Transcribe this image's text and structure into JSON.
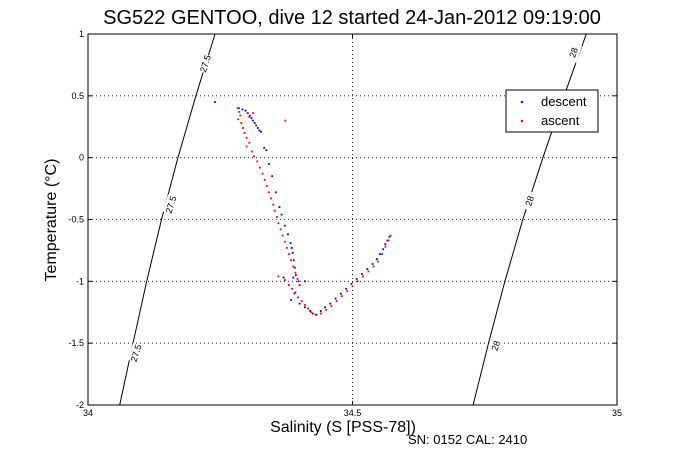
{
  "chart_data": {
    "type": "scatter",
    "title": "SG522 GENTOO, dive 12 started 24-Jan-2012 09:19:00",
    "xlabel": "Salinity (S [PSS-78])",
    "ylabel": "Temperature (°C)",
    "footer": "SN: 0152  CAL: 2410",
    "xlim": [
      34,
      35
    ],
    "ylim": [
      -2,
      1
    ],
    "x_ticks": [
      34,
      34.5,
      35
    ],
    "x_tick_labels": [
      "34",
      "34.5",
      "35"
    ],
    "y_ticks": [
      -2,
      -1.5,
      -1,
      -0.5,
      0,
      0.5,
      1
    ],
    "y_tick_labels": [
      "-2",
      "-1.5",
      "-1",
      "-0.5",
      "0",
      "0.5",
      "1"
    ],
    "grid": true,
    "legend_placement": "top-right",
    "density_contours": [
      {
        "label": "27.5",
        "points": [
          [
            34.24,
            1.0
          ],
          [
            34.204,
            0.5
          ],
          [
            34.17,
            0.0
          ],
          [
            34.139,
            -0.5
          ],
          [
            34.111,
            -1.0
          ],
          [
            34.085,
            -1.5
          ],
          [
            34.06,
            -2.0
          ]
        ],
        "label_positions": [
          [
            34.222,
            0.76
          ],
          [
            34.157,
            -0.38
          ],
          [
            34.091,
            -1.58
          ]
        ]
      },
      {
        "label": "28",
        "points": [
          [
            34.942,
            1.0
          ],
          [
            34.9,
            0.5
          ],
          [
            34.86,
            0.0
          ],
          [
            34.822,
            -0.5
          ],
          [
            34.788,
            -1.0
          ],
          [
            34.757,
            -1.5
          ],
          [
            34.728,
            -2.0
          ]
        ],
        "label_positions": [
          [
            34.918,
            0.85
          ],
          [
            34.835,
            -0.35
          ],
          [
            34.771,
            -1.52
          ]
        ]
      }
    ],
    "series": [
      {
        "name": "descent",
        "color": "#0000ff",
        "points": [
          [
            34.24,
            0.45
          ],
          [
            34.285,
            0.4
          ],
          [
            34.292,
            0.39
          ],
          [
            34.298,
            0.38
          ],
          [
            34.302,
            0.36
          ],
          [
            34.306,
            0.34
          ],
          [
            34.309,
            0.32
          ],
          [
            34.312,
            0.3
          ],
          [
            34.315,
            0.28
          ],
          [
            34.318,
            0.26
          ],
          [
            34.321,
            0.24
          ],
          [
            34.324,
            0.22
          ],
          [
            34.327,
            0.21
          ],
          [
            34.333,
            0.08
          ],
          [
            34.337,
            0.06
          ],
          [
            34.342,
            -0.05
          ],
          [
            34.348,
            -0.15
          ],
          [
            34.355,
            -0.28
          ],
          [
            34.362,
            -0.4
          ],
          [
            34.366,
            -0.46
          ],
          [
            34.372,
            -0.55
          ],
          [
            34.378,
            -0.62
          ],
          [
            34.383,
            -0.69
          ],
          [
            34.385,
            -0.73
          ],
          [
            34.387,
            -0.77
          ],
          [
            34.389,
            -0.83
          ],
          [
            34.391,
            -0.89
          ],
          [
            34.393,
            -0.95
          ],
          [
            34.37,
            -0.97
          ],
          [
            34.388,
            -0.97
          ],
          [
            34.398,
            -1.0
          ],
          [
            34.41,
            -1.0
          ],
          [
            34.4,
            -1.03
          ],
          [
            34.392,
            -1.09
          ],
          [
            34.384,
            -1.15
          ],
          [
            34.4,
            -1.18
          ],
          [
            34.41,
            -1.21
          ],
          [
            34.42,
            -1.24
          ],
          [
            34.425,
            -1.26
          ],
          [
            34.432,
            -1.27
          ],
          [
            34.44,
            -1.24
          ],
          [
            34.448,
            -1.21
          ],
          [
            34.458,
            -1.18
          ],
          [
            34.468,
            -1.14
          ],
          [
            34.478,
            -1.1
          ],
          [
            34.488,
            -1.06
          ],
          [
            34.498,
            -1.02
          ],
          [
            34.508,
            -0.98
          ],
          [
            34.518,
            -0.94
          ],
          [
            34.528,
            -0.9
          ],
          [
            34.538,
            -0.86
          ],
          [
            34.546,
            -0.82
          ],
          [
            34.552,
            -0.78
          ],
          [
            34.558,
            -0.74
          ],
          [
            34.562,
            -0.7
          ],
          [
            34.566,
            -0.67
          ],
          [
            34.57,
            -0.64
          ]
        ]
      },
      {
        "name": "ascent",
        "color": "#ff0000",
        "points": [
          [
            34.283,
            0.4
          ],
          [
            34.286,
            0.37
          ],
          [
            34.288,
            0.34
          ],
          [
            34.284,
            0.31
          ],
          [
            34.29,
            0.28
          ],
          [
            34.293,
            0.24
          ],
          [
            34.296,
            0.2
          ],
          [
            34.3,
            0.16
          ],
          [
            34.305,
            0.12
          ],
          [
            34.3,
            0.09
          ],
          [
            34.31,
            0.05
          ],
          [
            34.314,
            0.01
          ],
          [
            34.32,
            -0.03
          ],
          [
            34.325,
            -0.08
          ],
          [
            34.33,
            -0.13
          ],
          [
            34.334,
            -0.18
          ],
          [
            34.338,
            -0.23
          ],
          [
            34.342,
            -0.28
          ],
          [
            34.346,
            -0.33
          ],
          [
            34.35,
            -0.38
          ],
          [
            34.353,
            -0.43
          ],
          [
            34.357,
            -0.48
          ],
          [
            34.36,
            -0.53
          ],
          [
            34.364,
            -0.58
          ],
          [
            34.368,
            -0.63
          ],
          [
            34.372,
            -0.68
          ],
          [
            34.376,
            -0.73
          ],
          [
            34.38,
            -0.78
          ],
          [
            34.384,
            -0.83
          ],
          [
            34.388,
            -0.88
          ],
          [
            34.392,
            -0.93
          ],
          [
            34.396,
            -0.98
          ],
          [
            34.4,
            -1.03
          ],
          [
            34.36,
            -0.96
          ],
          [
            34.372,
            -0.99
          ],
          [
            34.38,
            -1.03
          ],
          [
            34.386,
            -1.06
          ],
          [
            34.39,
            -1.1
          ],
          [
            34.397,
            -1.13
          ],
          [
            34.404,
            -1.16
          ],
          [
            34.41,
            -1.19
          ],
          [
            34.416,
            -1.22
          ],
          [
            34.422,
            -1.25
          ],
          [
            34.43,
            -1.27
          ],
          [
            34.44,
            -1.26
          ],
          [
            34.45,
            -1.23
          ],
          [
            34.46,
            -1.2
          ],
          [
            34.47,
            -1.16
          ],
          [
            34.48,
            -1.12
          ],
          [
            34.49,
            -1.08
          ],
          [
            34.5,
            -1.04
          ],
          [
            34.51,
            -1.0
          ],
          [
            34.52,
            -0.96
          ],
          [
            34.53,
            -0.92
          ],
          [
            34.54,
            -0.88
          ],
          [
            34.548,
            -0.84
          ],
          [
            34.556,
            -0.78
          ],
          [
            34.562,
            -0.72
          ],
          [
            34.568,
            -0.67
          ],
          [
            34.572,
            -0.63
          ],
          [
            34.373,
            0.3
          ],
          [
            34.305,
            0.33
          ],
          [
            34.312,
            0.36
          ]
        ]
      }
    ]
  }
}
